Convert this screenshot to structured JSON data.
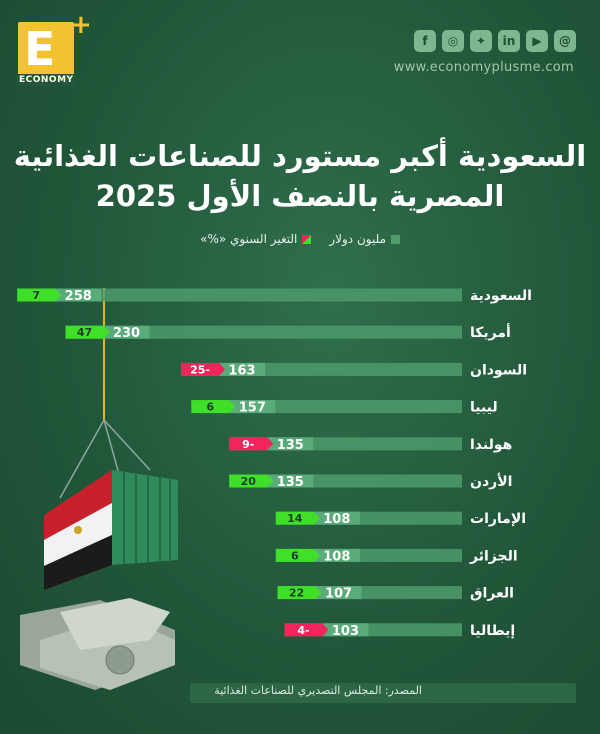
{
  "brand": {
    "logo_letter": "E",
    "logo_plus": "+",
    "logo_word": "ECONOMY",
    "website": "www.economyplusme.com"
  },
  "social_icons": [
    "facebook-icon",
    "instagram-icon",
    "twitter-icon",
    "linkedin-icon",
    "youtube-icon",
    "threads-icon"
  ],
  "title_line1": "السعودية أكبر مستورد للصناعات الغذائية",
  "title_line2": "المصرية بالنصف الأول 2025",
  "legend": {
    "value_label": "مليون دولار",
    "change_label": "التغير السنوي «%»"
  },
  "source": "المصدر: المجلس التصديري للصناعات الغذائية",
  "colors": {
    "bar": "#4e9b6c",
    "value_box": "#5aab7a",
    "positive": "#3fe028",
    "negative": "#f2245e",
    "background": "#22573a"
  },
  "chart_data": {
    "type": "bar",
    "orientation": "horizontal",
    "categories": [
      "السعودية",
      "أمريكا",
      "السودان",
      "ليبيا",
      "هولندا",
      "الأردن",
      "الإمارات",
      "الجزائر",
      "العراق",
      "إيطاليا"
    ],
    "series": [
      {
        "name": "مليون دولار",
        "values": [
          258,
          230,
          163,
          157,
          135,
          135,
          108,
          108,
          107,
          103
        ]
      },
      {
        "name": "التغير السنوي «%»",
        "values": [
          7,
          47,
          -25,
          6,
          -9,
          20,
          14,
          6,
          22,
          -4
        ]
      }
    ]
  }
}
